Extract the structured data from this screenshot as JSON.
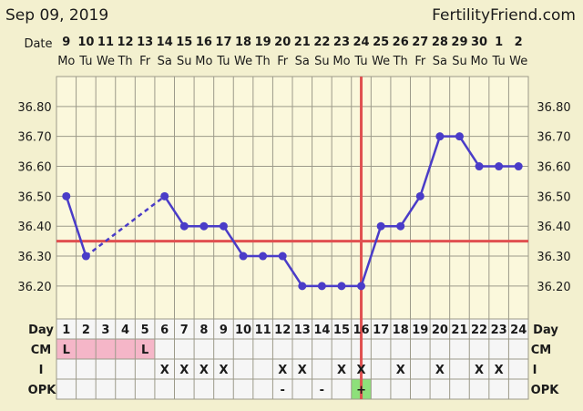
{
  "header": {
    "date": "Sep 09, 2019",
    "site": "FertilityFriend.com"
  },
  "labels": {
    "date": "Date",
    "day": "Day",
    "cm": "CM",
    "i": "I",
    "opk": "OPK"
  },
  "colors": {
    "background": "#f3f0cf",
    "plot_bg": "#fbf8dc",
    "grid": "#9c9a8a",
    "line": "#4a3cc8",
    "coverline": "#e05050",
    "cm_pink": "#f5b6c8",
    "opk_pos": "#8de07a"
  },
  "chart_data": {
    "type": "line",
    "dates": [
      "9",
      "10",
      "11",
      "12",
      "13",
      "14",
      "15",
      "16",
      "17",
      "18",
      "19",
      "20",
      "21",
      "22",
      "23",
      "24",
      "25",
      "26",
      "27",
      "28",
      "29",
      "30",
      "1",
      "2"
    ],
    "weekdays": [
      "Mo",
      "Tu",
      "We",
      "Th",
      "Fr",
      "Sa",
      "Su",
      "Mo",
      "Tu",
      "We",
      "Th",
      "Fr",
      "Sa",
      "Su",
      "Mo",
      "Tu",
      "We",
      "Th",
      "Fr",
      "Sa",
      "Su",
      "Mo",
      "Tu",
      "We"
    ],
    "cycle_days": [
      "1",
      "2",
      "3",
      "4",
      "5",
      "6",
      "7",
      "8",
      "9",
      "10",
      "11",
      "12",
      "13",
      "14",
      "15",
      "16",
      "17",
      "18",
      "19",
      "20",
      "21",
      "22",
      "23",
      "24"
    ],
    "temperatures": [
      36.5,
      36.3,
      null,
      null,
      null,
      36.5,
      36.4,
      36.4,
      36.4,
      36.3,
      36.3,
      36.3,
      36.2,
      36.2,
      36.2,
      36.2,
      36.4,
      36.4,
      36.5,
      36.7,
      36.7,
      36.6,
      36.6,
      36.6
    ],
    "y_ticks": [
      "36.80",
      "36.70",
      "36.60",
      "36.50",
      "36.40",
      "36.30",
      "36.20"
    ],
    "ylim": [
      36.09,
      36.9
    ],
    "coverline": 36.35,
    "ovulation_day": 16,
    "grid": true,
    "cm": [
      "L",
      "",
      "",
      "",
      "L",
      "",
      "",
      "",
      "",
      "",
      "",
      "",
      "",
      "",
      "",
      "",
      "",
      "",
      "",
      "",
      "",
      "",
      "",
      ""
    ],
    "intercourse": [
      "",
      "",
      "",
      "",
      "",
      "X",
      "X",
      "X",
      "X",
      "",
      "",
      "X",
      "X",
      "",
      "X",
      "X",
      "",
      "X",
      "",
      "X",
      "",
      "X",
      "X",
      ""
    ],
    "opk": [
      "",
      "",
      "",
      "",
      "",
      "",
      "",
      "",
      "",
      "",
      "",
      "-",
      "",
      "-",
      "",
      "+",
      "",
      "",
      "",
      "",
      "",
      "",
      "",
      ""
    ]
  }
}
